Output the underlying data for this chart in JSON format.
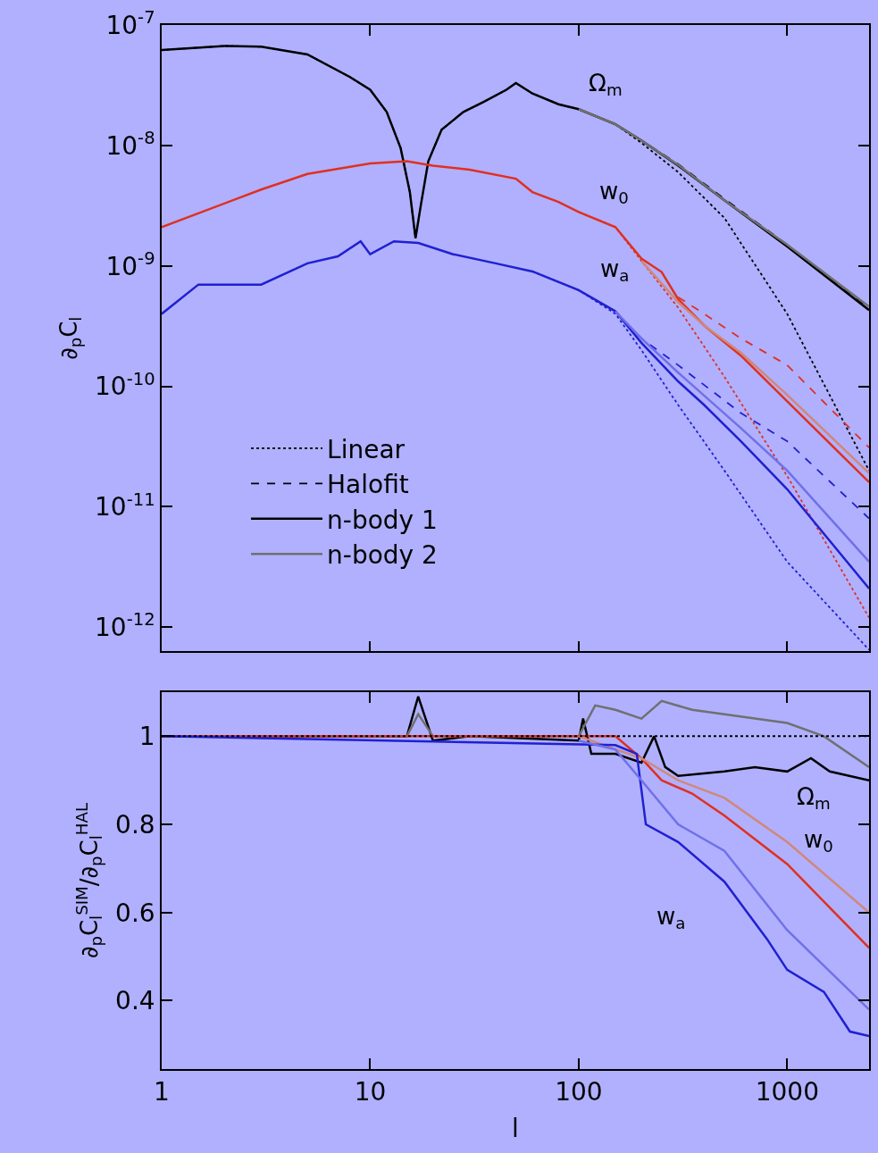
{
  "chart_data": [
    {
      "type": "line",
      "ylabel": "∂$_{p}$C$_{l}$",
      "log": "xy",
      "xlim": [
        1,
        2470
      ],
      "ylim": [
        6.3e-13,
        1e-07
      ],
      "xticks": [
        {
          "value": 1,
          "label": null
        },
        {
          "value": 10,
          "label": null
        },
        {
          "value": 100,
          "label": null
        },
        {
          "value": 1000,
          "label": null
        }
      ],
      "yticks": [
        {
          "value": 1e-07,
          "label": "10$^{-7}$"
        },
        {
          "value": 1e-08,
          "label": "10$^{-8}$"
        },
        {
          "value": 1e-09,
          "label": "10$^{-9}$"
        },
        {
          "value": 1e-10,
          "label": "10$^{-10}$"
        },
        {
          "value": 1e-11,
          "label": "10$^{-11}$"
        },
        {
          "value": 1e-12,
          "label": "10$^{-12}$"
        }
      ],
      "tick_labels": "y",
      "grid": false,
      "legend": "bottom left",
      "marker": "none",
      "series": [
        {
          "name": "Linear",
          "color": "#000000",
          "line_style": "dotted",
          "x": [
            1,
            2,
            3,
            5,
            8,
            10,
            12,
            14,
            15.5,
            16.5,
            17.5,
            19,
            22,
            28,
            35,
            45,
            50,
            60,
            80,
            100,
            150,
            200,
            300,
            500,
            1000,
            2470
          ],
          "values": [
            6.2e-08,
            6.7e-08,
            6.6e-08,
            5.7e-08,
            3.7e-08,
            2.9e-08,
            1.9e-08,
            9.5e-09,
            4.1e-09,
            1.7e-09,
            3.2e-09,
            7.4e-09,
            1.35e-08,
            1.9e-08,
            2.3e-08,
            2.9e-08,
            3.3e-08,
            2.7e-08,
            2.2e-08,
            2e-08,
            1.5e-08,
            1.05e-08,
            6e-09,
            2.5e-09,
            4e-10,
            2e-11
          ]
        },
        {
          "name": "Halofit",
          "color": "#000000",
          "line_style": "dashed",
          "x": [
            100,
            150,
            200,
            300,
            500,
            1000,
            2470
          ],
          "values": [
            2e-08,
            1.5e-08,
            1.1e-08,
            7e-09,
            3.6e-09,
            1.5e-09,
            4.5e-10
          ]
        },
        {
          "name": "n-body 1",
          "color": "#000000",
          "line_style": "solid",
          "x": [
            1,
            2,
            3,
            5,
            8,
            10,
            12,
            14,
            15.5,
            16.5,
            17.5,
            19,
            22,
            28,
            35,
            45,
            50,
            60,
            80,
            100,
            150,
            200,
            300,
            500,
            1000,
            2470
          ],
          "values": [
            6.2e-08,
            6.7e-08,
            6.6e-08,
            5.7e-08,
            3.7e-08,
            2.9e-08,
            1.9e-08,
            9.5e-09,
            4.1e-09,
            1.7e-09,
            3.2e-09,
            7.4e-09,
            1.35e-08,
            1.9e-08,
            2.3e-08,
            2.9e-08,
            3.3e-08,
            2.7e-08,
            2.2e-08,
            2e-08,
            1.5e-08,
            1.1e-08,
            6.8e-09,
            3.5e-09,
            1.45e-09,
            4.3e-10
          ]
        },
        {
          "name": "n-body 2",
          "color": "#707070",
          "line_style": "solid",
          "x": [
            100,
            150,
            200,
            300,
            500,
            1000,
            2470
          ],
          "values": [
            2e-08,
            1.5e-08,
            1.1e-08,
            6.9e-09,
            3.5e-09,
            1.5e-09,
            4.6e-10
          ]
        },
        {
          "color": "#e03020",
          "line_style": "dotted",
          "x": [
            100,
            150,
            200,
            300,
            500,
            1000,
            2470
          ],
          "values": [
            2.8e-09,
            2.1e-09,
            1.1e-09,
            4.5e-10,
            1.2e-10,
            1.8e-11,
            1.2e-12
          ]
        },
        {
          "color": "#e03020",
          "line_style": "dashed",
          "x": [
            300,
            400,
            600,
            1000,
            2470
          ],
          "values": [
            5.5e-10,
            4e-10,
            2.5e-10,
            1.5e-10,
            3.1e-11
          ]
        },
        {
          "color": "#e03020",
          "line_style": "solid",
          "x": [
            1,
            3,
            5,
            10,
            15,
            20,
            30,
            50,
            60,
            80,
            100,
            150,
            200,
            250,
            300,
            400,
            600,
            1000,
            2470
          ],
          "values": [
            2.1e-09,
            4.3e-09,
            5.8e-09,
            7.1e-09,
            7.4e-09,
            6.8e-09,
            6.3e-09,
            5.3e-09,
            4.1e-09,
            3.4e-09,
            2.8e-09,
            2.1e-09,
            1.15e-09,
            8.9e-10,
            5.3e-10,
            3.2e-10,
            1.8e-10,
            7.5e-11,
            1.6e-11
          ]
        },
        {
          "color": "#d08878",
          "line_style": "solid",
          "x": [
            200,
            300,
            400,
            600,
            1000,
            2470
          ],
          "values": [
            1.1e-09,
            5e-10,
            3.2e-10,
            1.9e-10,
            8.5e-11,
            1.9e-11
          ]
        },
        {
          "color": "#2020d0",
          "line_style": "dotted",
          "x": [
            60,
            100,
            150,
            200,
            300,
            500,
            1000,
            2470
          ],
          "values": [
            9e-10,
            6.3e-10,
            4e-10,
            2e-10,
            7e-11,
            2e-11,
            3.5e-12,
            6.5e-13
          ]
        },
        {
          "color": "#2020d0",
          "line_style": "dashed",
          "x": [
            150,
            200,
            300,
            600,
            1000,
            2470
          ],
          "values": [
            4.2e-10,
            2.5e-10,
            1.5e-10,
            6e-11,
            3.5e-11,
            8e-12
          ]
        },
        {
          "color": "#2020d0",
          "line_style": "solid",
          "x": [
            1,
            1.5,
            3,
            5,
            7,
            9,
            10,
            13,
            17,
            25,
            40,
            60,
            100,
            150,
            200,
            300,
            400,
            600,
            1000,
            2470
          ],
          "values": [
            4e-10,
            7e-10,
            7e-10,
            1.05e-09,
            1.2e-09,
            1.6e-09,
            1.25e-09,
            1.6e-09,
            1.55e-09,
            1.25e-09,
            1.05e-09,
            9e-10,
            6.3e-10,
            4.2e-10,
            2.3e-10,
            1.1e-10,
            7e-11,
            3.5e-11,
            1.4e-11,
            2.1e-12
          ]
        },
        {
          "color": "#7070e8",
          "line_style": "solid",
          "x": [
            150,
            200,
            300,
            600,
            1000,
            2470
          ],
          "values": [
            4.2e-10,
            2.5e-10,
            1.3e-10,
            4.5e-11,
            2e-11,
            3.5e-12
          ]
        }
      ],
      "annotations": [
        {
          "text": "Ω$_{m}$",
          "x": 100,
          "y": 2e-08
        },
        {
          "text": "w$_{0}$",
          "x": 100,
          "y": 2.8e-09
        },
        {
          "text": "w$_{a}$",
          "x": 100,
          "y": 6.3e-10
        }
      ]
    },
    {
      "type": "line",
      "xlabel": "l",
      "ylabel": "∂$_{p}$C$_{l}$$^{SIM}$/∂$_{p}$C$_{l}$$^{HAL}$",
      "log": "x",
      "xlim": [
        1,
        2470
      ],
      "ylim": [
        0.245,
        1.1
      ],
      "xticks": [
        1,
        10,
        100,
        1000
      ],
      "yticks": [
        1,
        0.8,
        0.6,
        0.4
      ],
      "grid": false,
      "marker": "none",
      "ref_lines": [
        {
          "axis": "y",
          "value": 1,
          "color": "#000000",
          "line_style": "dotted"
        }
      ],
      "series": [
        {
          "color": "#000000",
          "line_style": "solid",
          "x": [
            1,
            15,
            17,
            20,
            30,
            100,
            105,
            115,
            150,
            200,
            230,
            260,
            300,
            500,
            700,
            1000,
            1300,
            1600,
            2470
          ],
          "values": [
            1,
            1,
            1.09,
            0.99,
            1,
            0.99,
            1.04,
            0.96,
            0.96,
            0.94,
            1,
            0.93,
            0.91,
            0.92,
            0.93,
            0.92,
            0.95,
            0.92,
            0.9
          ]
        },
        {
          "color": "#707070",
          "line_style": "solid",
          "x": [
            15,
            17,
            20,
            30,
            100,
            120,
            150,
            200,
            250,
            350,
            500,
            700,
            1000,
            1500,
            2470
          ],
          "values": [
            1,
            1.05,
            1,
            1,
            1,
            1.07,
            1.06,
            1.04,
            1.08,
            1.06,
            1.05,
            1.04,
            1.03,
            1,
            0.93
          ]
        },
        {
          "color": "#e03020",
          "line_style": "solid",
          "x": [
            1,
            150,
            200,
            250,
            350,
            500,
            1000,
            2470
          ],
          "values": [
            1,
            1,
            0.95,
            0.9,
            0.87,
            0.82,
            0.71,
            0.52
          ]
        },
        {
          "color": "#d08878",
          "line_style": "solid",
          "x": [
            100,
            200,
            300,
            500,
            1000,
            2470
          ],
          "values": [
            1,
            0.95,
            0.9,
            0.86,
            0.76,
            0.6
          ]
        },
        {
          "color": "#2020d0",
          "line_style": "solid",
          "x": [
            1,
            150,
            190,
            210,
            300,
            500,
            800,
            1000,
            1500,
            2000,
            2470
          ],
          "values": [
            1,
            0.98,
            0.96,
            0.8,
            0.76,
            0.67,
            0.54,
            0.47,
            0.42,
            0.33,
            0.32
          ]
        },
        {
          "color": "#7070e8",
          "line_style": "solid",
          "x": [
            100,
            150,
            200,
            300,
            500,
            1000,
            2470
          ],
          "values": [
            0.99,
            0.97,
            0.9,
            0.8,
            0.74,
            0.56,
            0.38
          ]
        }
      ],
      "annotations": [
        {
          "text": "Ω$_{m}$",
          "x": 1000,
          "y": 0.92
        },
        {
          "text": "w$_{0}$",
          "x": 1000,
          "y": 0.71
        },
        {
          "text": "w$_{a}$",
          "x": 500,
          "y": 0.67
        }
      ]
    }
  ]
}
